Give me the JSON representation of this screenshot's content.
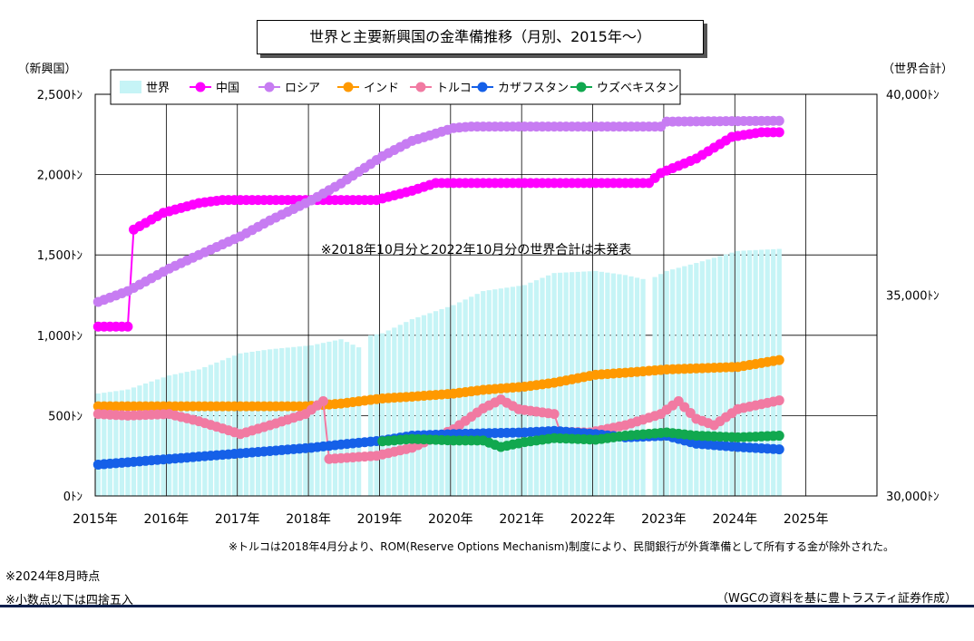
{
  "title": "世界と主要新興国の金準備推移（月別、2015年～）",
  "left_axis_title": "（新興国）",
  "right_axis_title": "（世界合計）",
  "annotation_center": "※2018年10月分と2022年10月分の世界合計は未発表",
  "note_turkey": "※トルコは2018年4月分より、ROM(Reserve Options Mechanism)制度により、民間銀行が外貨準備として所有する金が除外された。",
  "note_asof": "※2024年8月時点",
  "note_rounding": "※小数点以下は四捨五入",
  "source": "（WGCの資料を基に豊トラスティ証券作成）",
  "colors": {
    "world": "#c6f4f6",
    "china": "#ff00ff",
    "russia": "#c77cf2",
    "india": "#ff9900",
    "turkey": "#f17aa2",
    "kazakhstan": "#1560e8",
    "uzbekistan": "#11a84f"
  },
  "chart_data": {
    "type": "bar+line",
    "x_start": "2015-01",
    "x_end": "2024-08",
    "xlim": [
      "2015-01",
      "2025-12"
    ],
    "x_ticks": [
      "2015年",
      "2016年",
      "2017年",
      "2018年",
      "2019年",
      "2020年",
      "2021年",
      "2022年",
      "2023年",
      "2024年",
      "2025年"
    ],
    "y_left_lim": [
      0,
      2500
    ],
    "y_left_ticks": [
      "0ﾄﾝ",
      "500ﾄﾝ",
      "1,000ﾄﾝ",
      "1,500ﾄﾝ",
      "2,000ﾄﾝ",
      "2,500ﾄﾝ"
    ],
    "y_right_lim": [
      30000,
      40000
    ],
    "y_right_ticks": [
      "30,000ﾄﾝ",
      "35,000ﾄﾝ",
      "40,000ﾄﾝ"
    ],
    "grid": "horizontal-major",
    "legend_position": "top-left",
    "world_missing": [
      "2018-10",
      "2022-10"
    ],
    "series": [
      {
        "name": "世界",
        "axis": "right",
        "kind": "bar",
        "color_key": "world",
        "points": [
          [
            "2015-01",
            32550
          ],
          [
            "2015-06",
            32650
          ],
          [
            "2016-01",
            33000
          ],
          [
            "2016-06",
            33150
          ],
          [
            "2017-01",
            33550
          ],
          [
            "2017-06",
            33650
          ],
          [
            "2018-01",
            33750
          ],
          [
            "2018-06",
            33900
          ],
          [
            "2018-09",
            33700
          ],
          [
            "2018-11",
            34000
          ],
          [
            "2019-01",
            34050
          ],
          [
            "2019-06",
            34400
          ],
          [
            "2020-01",
            34750
          ],
          [
            "2020-06",
            35100
          ],
          [
            "2021-01",
            35250
          ],
          [
            "2021-06",
            35550
          ],
          [
            "2022-01",
            35600
          ],
          [
            "2022-06",
            35500
          ],
          [
            "2022-09",
            35400
          ],
          [
            "2022-11",
            35450
          ],
          [
            "2023-01",
            35600
          ],
          [
            "2023-06",
            35800
          ],
          [
            "2024-01",
            36100
          ],
          [
            "2024-08",
            36150
          ]
        ]
      },
      {
        "name": "中国",
        "axis": "left",
        "kind": "line",
        "color_key": "china",
        "points": [
          [
            "2015-01",
            1054
          ],
          [
            "2015-06",
            1054
          ],
          [
            "2015-07",
            1658
          ],
          [
            "2015-12",
            1762
          ],
          [
            "2016-06",
            1823
          ],
          [
            "2016-10",
            1842
          ],
          [
            "2018-12",
            1842
          ],
          [
            "2019-06",
            1900
          ],
          [
            "2019-10",
            1948
          ],
          [
            "2022-10",
            1948
          ],
          [
            "2022-12",
            2010
          ],
          [
            "2023-06",
            2100
          ],
          [
            "2023-12",
            2235
          ],
          [
            "2024-05",
            2264
          ],
          [
            "2024-08",
            2264
          ]
        ]
      },
      {
        "name": "ロシア",
        "axis": "left",
        "kind": "line",
        "color_key": "russia",
        "points": [
          [
            "2015-01",
            1208
          ],
          [
            "2015-06",
            1275
          ],
          [
            "2016-01",
            1415
          ],
          [
            "2016-06",
            1500
          ],
          [
            "2017-01",
            1615
          ],
          [
            "2017-06",
            1715
          ],
          [
            "2018-01",
            1840
          ],
          [
            "2018-06",
            1945
          ],
          [
            "2019-01",
            2115
          ],
          [
            "2019-06",
            2210
          ],
          [
            "2020-01",
            2290
          ],
          [
            "2020-04",
            2299
          ],
          [
            "2022-12",
            2299
          ],
          [
            "2023-01",
            2330
          ],
          [
            "2024-08",
            2335
          ]
        ]
      },
      {
        "name": "インド",
        "axis": "left",
        "kind": "line",
        "color_key": "india",
        "points": [
          [
            "2015-01",
            558
          ],
          [
            "2017-12",
            558
          ],
          [
            "2018-06",
            575
          ],
          [
            "2019-01",
            607
          ],
          [
            "2019-06",
            618
          ],
          [
            "2020-01",
            637
          ],
          [
            "2020-06",
            660
          ],
          [
            "2021-01",
            680
          ],
          [
            "2021-06",
            705
          ],
          [
            "2022-01",
            754
          ],
          [
            "2022-06",
            767
          ],
          [
            "2023-01",
            787
          ],
          [
            "2023-06",
            794
          ],
          [
            "2024-01",
            803
          ],
          [
            "2024-08",
            846
          ]
        ]
      },
      {
        "name": "トルコ",
        "axis": "left",
        "kind": "line",
        "color_key": "turkey",
        "points": [
          [
            "2015-01",
            510
          ],
          [
            "2015-06",
            500
          ],
          [
            "2016-01",
            510
          ],
          [
            "2016-06",
            465
          ],
          [
            "2016-10",
            420
          ],
          [
            "2017-01",
            385
          ],
          [
            "2017-06",
            440
          ],
          [
            "2017-12",
            510
          ],
          [
            "2018-03",
            590
          ],
          [
            "2018-04",
            230
          ],
          [
            "2018-12",
            250
          ],
          [
            "2019-06",
            300
          ],
          [
            "2020-01",
            415
          ],
          [
            "2020-06",
            545
          ],
          [
            "2020-09",
            600
          ],
          [
            "2020-12",
            540
          ],
          [
            "2021-06",
            510
          ],
          [
            "2021-07",
            400
          ],
          [
            "2021-12",
            395
          ],
          [
            "2022-06",
            440
          ],
          [
            "2022-12",
            510
          ],
          [
            "2023-03",
            590
          ],
          [
            "2023-06",
            480
          ],
          [
            "2023-09",
            440
          ],
          [
            "2024-01",
            540
          ],
          [
            "2024-08",
            595
          ]
        ]
      },
      {
        "name": "カザフスタン",
        "axis": "left",
        "kind": "line",
        "color_key": "kazakhstan",
        "points": [
          [
            "2015-01",
            195
          ],
          [
            "2016-01",
            230
          ],
          [
            "2017-01",
            265
          ],
          [
            "2018-01",
            300
          ],
          [
            "2018-06",
            320
          ],
          [
            "2019-01",
            345
          ],
          [
            "2019-06",
            375
          ],
          [
            "2020-01",
            385
          ],
          [
            "2020-06",
            390
          ],
          [
            "2021-01",
            395
          ],
          [
            "2021-06",
            405
          ],
          [
            "2022-01",
            385
          ],
          [
            "2022-06",
            365
          ],
          [
            "2023-01",
            375
          ],
          [
            "2023-06",
            325
          ],
          [
            "2024-01",
            305
          ],
          [
            "2024-08",
            290
          ]
        ]
      },
      {
        "name": "ウズベキスタン",
        "axis": "left",
        "kind": "line",
        "color_key": "uzbekistan",
        "points": [
          [
            "2019-01",
            340
          ],
          [
            "2019-06",
            355
          ],
          [
            "2020-01",
            345
          ],
          [
            "2020-06",
            345
          ],
          [
            "2020-09",
            305
          ],
          [
            "2021-01",
            335
          ],
          [
            "2021-06",
            360
          ],
          [
            "2022-01",
            350
          ],
          [
            "2022-06",
            375
          ],
          [
            "2023-01",
            395
          ],
          [
            "2023-06",
            375
          ],
          [
            "2024-01",
            365
          ],
          [
            "2024-08",
            375
          ]
        ]
      }
    ]
  }
}
